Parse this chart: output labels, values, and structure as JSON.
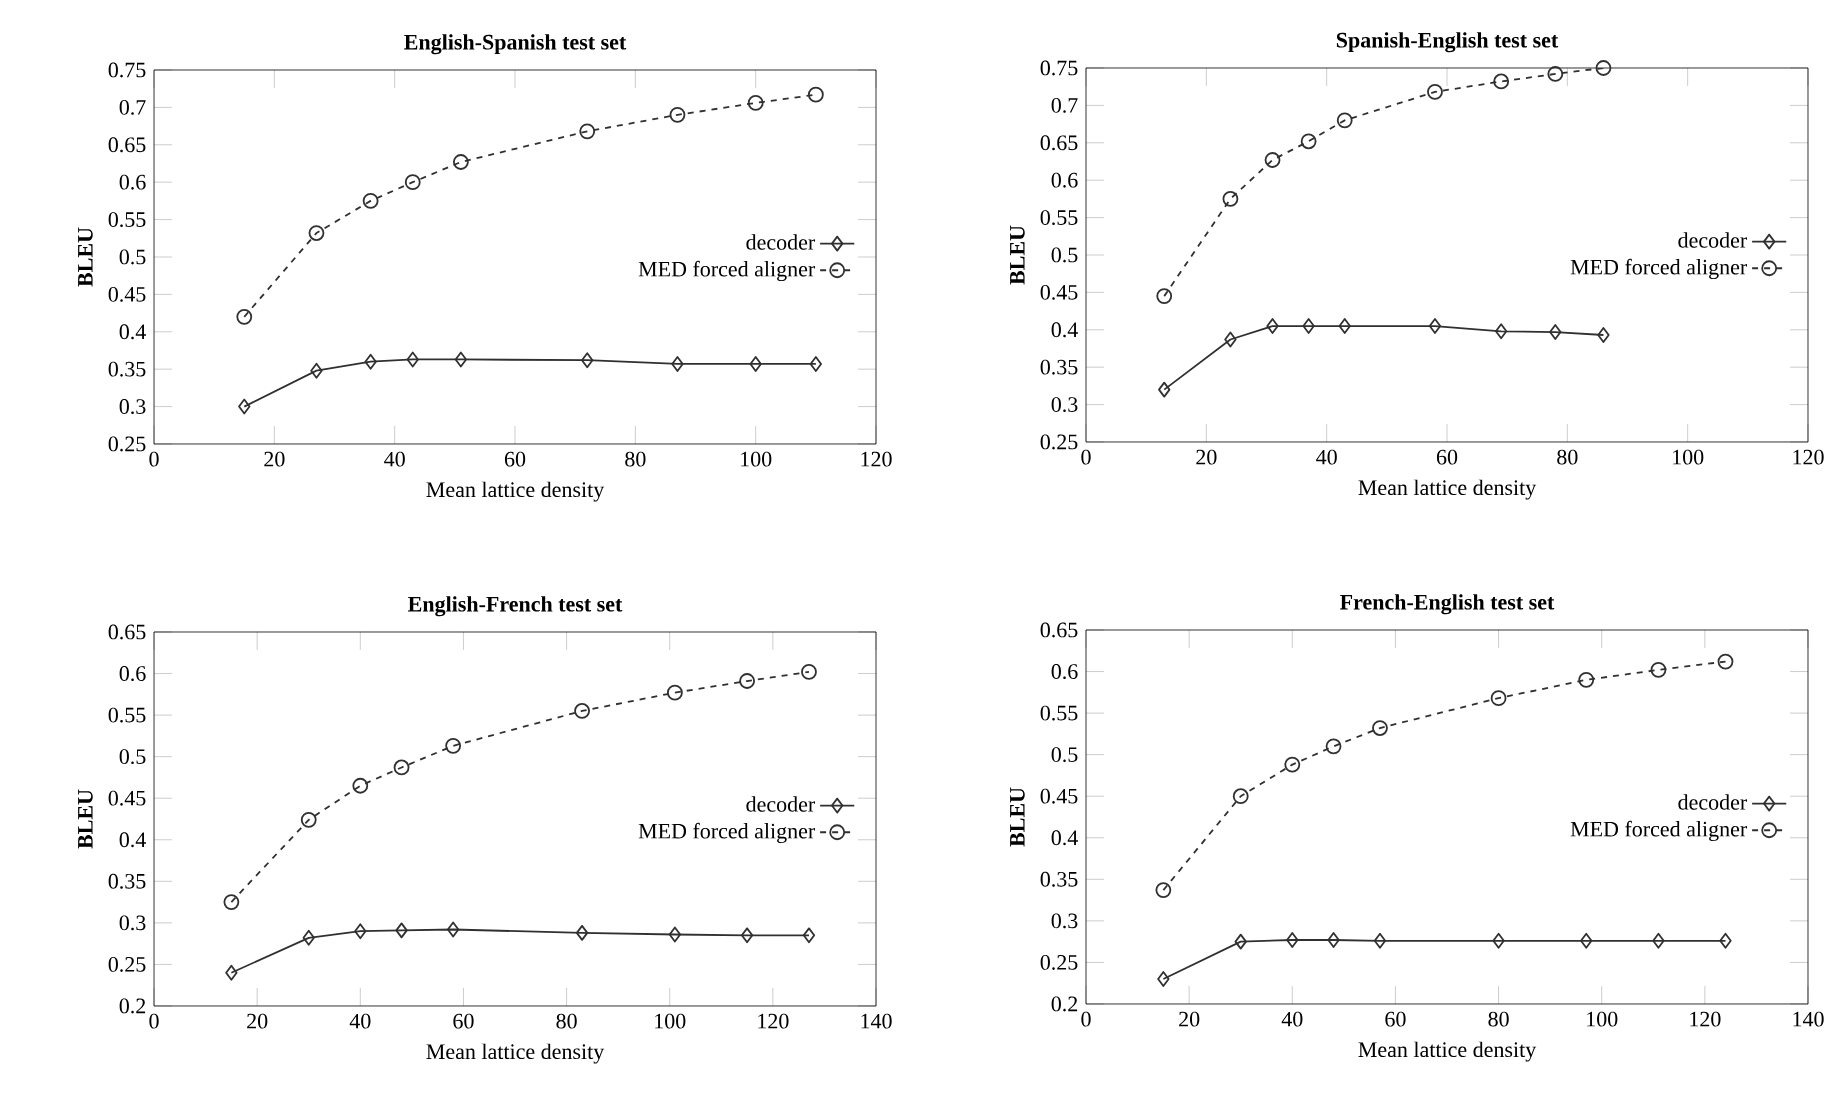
{
  "chart_data": [
    {
      "type": "line",
      "title": "English-Spanish test set",
      "xlabel": "Mean lattice density",
      "ylabel": "BLEU",
      "xlim": [
        0,
        120
      ],
      "xticks": [
        0,
        20,
        40,
        60,
        80,
        100,
        120
      ],
      "ylim": [
        0.25,
        0.75
      ],
      "yticks": [
        0.25,
        0.3,
        0.35,
        0.4,
        0.45,
        0.5,
        0.55,
        0.6,
        0.65,
        0.7,
        0.75
      ],
      "legend": "right",
      "series": [
        {
          "name": "decoder",
          "color": "#303030",
          "marker": "diamond",
          "line_style": "solid",
          "x": [
            15,
            27,
            36,
            43,
            51,
            72,
            87,
            100,
            110
          ],
          "values": [
            0.3,
            0.348,
            0.36,
            0.363,
            0.363,
            0.362,
            0.357,
            0.357,
            0.357
          ]
        },
        {
          "name": "MED forced aligner",
          "color": "#303030",
          "marker": "circle",
          "line_style": "dashed",
          "x": [
            15,
            27,
            36,
            43,
            51,
            72,
            87,
            100,
            110
          ],
          "values": [
            0.42,
            0.532,
            0.575,
            0.6,
            0.627,
            0.668,
            0.69,
            0.706,
            0.717
          ]
        }
      ]
    },
    {
      "type": "line",
      "title": "Spanish-English test set",
      "xlabel": "Mean lattice density",
      "ylabel": "BLEU",
      "xlim": [
        0,
        120
      ],
      "xticks": [
        0,
        20,
        40,
        60,
        80,
        100,
        120
      ],
      "ylim": [
        0.25,
        0.75
      ],
      "yticks": [
        0.25,
        0.3,
        0.35,
        0.4,
        0.45,
        0.5,
        0.55,
        0.6,
        0.65,
        0.7,
        0.75
      ],
      "legend": "right",
      "series": [
        {
          "name": "decoder",
          "color": "#303030",
          "marker": "diamond",
          "line_style": "solid",
          "x": [
            13,
            24,
            31,
            37,
            43,
            58,
            69,
            78,
            86
          ],
          "values": [
            0.32,
            0.387,
            0.405,
            0.405,
            0.405,
            0.405,
            0.398,
            0.397,
            0.393
          ]
        },
        {
          "name": "MED forced aligner",
          "color": "#303030",
          "marker": "circle",
          "line_style": "dashed",
          "x": [
            13,
            24,
            31,
            37,
            43,
            58,
            69,
            78,
            86
          ],
          "values": [
            0.445,
            0.575,
            0.627,
            0.652,
            0.68,
            0.718,
            0.732,
            0.742,
            0.75
          ]
        }
      ]
    },
    {
      "type": "line",
      "title": "English-French test set",
      "xlabel": "Mean lattice density",
      "ylabel": "BLEU",
      "xlim": [
        0,
        140
      ],
      "xticks": [
        0,
        20,
        40,
        60,
        80,
        100,
        120,
        140
      ],
      "ylim": [
        0.2,
        0.65
      ],
      "yticks": [
        0.2,
        0.25,
        0.3,
        0.35,
        0.4,
        0.45,
        0.5,
        0.55,
        0.6,
        0.65
      ],
      "legend": "right",
      "series": [
        {
          "name": "decoder",
          "color": "#303030",
          "marker": "diamond",
          "line_style": "solid",
          "x": [
            15,
            30,
            40,
            48,
            58,
            83,
            101,
            115,
            127
          ],
          "values": [
            0.24,
            0.282,
            0.29,
            0.291,
            0.292,
            0.288,
            0.286,
            0.285,
            0.285
          ]
        },
        {
          "name": "MED forced aligner",
          "color": "#303030",
          "marker": "circle",
          "line_style": "dashed",
          "x": [
            15,
            30,
            40,
            48,
            58,
            83,
            101,
            115,
            127
          ],
          "values": [
            0.325,
            0.424,
            0.465,
            0.487,
            0.513,
            0.555,
            0.577,
            0.591,
            0.602
          ]
        }
      ]
    },
    {
      "type": "line",
      "title": "French-English test set",
      "xlabel": "Mean lattice density",
      "ylabel": "BLEU",
      "xlim": [
        0,
        140
      ],
      "xticks": [
        0,
        20,
        40,
        60,
        80,
        100,
        120,
        140
      ],
      "ylim": [
        0.2,
        0.65
      ],
      "yticks": [
        0.2,
        0.25,
        0.3,
        0.35,
        0.4,
        0.45,
        0.5,
        0.55,
        0.6,
        0.65
      ],
      "legend": "right",
      "series": [
        {
          "name": "decoder",
          "color": "#303030",
          "marker": "diamond",
          "line_style": "solid",
          "x": [
            15,
            30,
            40,
            48,
            57,
            80,
            97,
            111,
            124
          ],
          "values": [
            0.23,
            0.275,
            0.277,
            0.277,
            0.276,
            0.276,
            0.276,
            0.276,
            0.276
          ]
        },
        {
          "name": "MED forced aligner",
          "color": "#303030",
          "marker": "circle",
          "line_style": "dashed",
          "x": [
            15,
            30,
            40,
            48,
            57,
            80,
            97,
            111,
            124
          ],
          "values": [
            0.337,
            0.45,
            0.488,
            0.51,
            0.532,
            0.568,
            0.59,
            0.602,
            0.612
          ]
        }
      ]
    }
  ]
}
